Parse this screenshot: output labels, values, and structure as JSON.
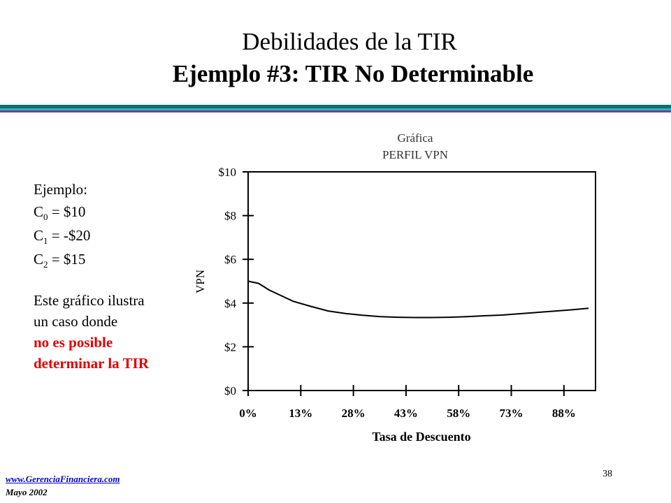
{
  "slide": {
    "title": "Debilidades de la TIR",
    "subtitle": "Ejemplo #3: TIR No Determinable",
    "example_label": "Ejemplo:",
    "c0": {
      "base": "C",
      "sub": "0",
      "rest": " = $10"
    },
    "c1": {
      "base": "C",
      "sub": "1",
      "rest": " = -$20"
    },
    "c2": {
      "base": "C",
      "sub": "2",
      "rest": " = $15"
    },
    "desc_line1": "Este gráfico ilustra",
    "desc_line2": "un caso donde",
    "highlight_line1": "no es posible",
    "highlight_line2": "determinar la TIR",
    "footer_link": "www.GerenciaFinanciera.com",
    "footer_date": "Mayo 2002",
    "page_number": "38",
    "colors": {
      "rule_teal": "#0f6f6f",
      "rule_cyan": "#22b6c4",
      "rule_purple": "#7a3c8c",
      "highlight_red": "#e00000"
    }
  },
  "chart_data": {
    "type": "line",
    "title": "Gráfica",
    "subtitle": "PERFIL VPN",
    "xlabel": "Tasa de Descuento",
    "ylabel": "VPN",
    "x_ticks": [
      "0%",
      "13%",
      "28%",
      "43%",
      "58%",
      "73%",
      "88%"
    ],
    "y_ticks": [
      "$0",
      "$2",
      "$4",
      "$6",
      "$8",
      "$10"
    ],
    "ylim": [
      0,
      10
    ],
    "xlim": [
      0,
      100
    ],
    "grid": false,
    "series": [
      {
        "x": [
          0,
          3,
          6,
          10,
          13,
          18,
          23,
          28,
          33,
          38,
          43,
          48,
          53,
          58,
          63,
          68,
          73,
          78,
          83,
          88,
          93,
          98
        ],
        "y": [
          5.0,
          4.9,
          4.6,
          4.3,
          4.08,
          3.85,
          3.64,
          3.52,
          3.44,
          3.38,
          3.35,
          3.34,
          3.34,
          3.35,
          3.38,
          3.42,
          3.45,
          3.51,
          3.57,
          3.63,
          3.69,
          3.76
        ]
      }
    ]
  }
}
